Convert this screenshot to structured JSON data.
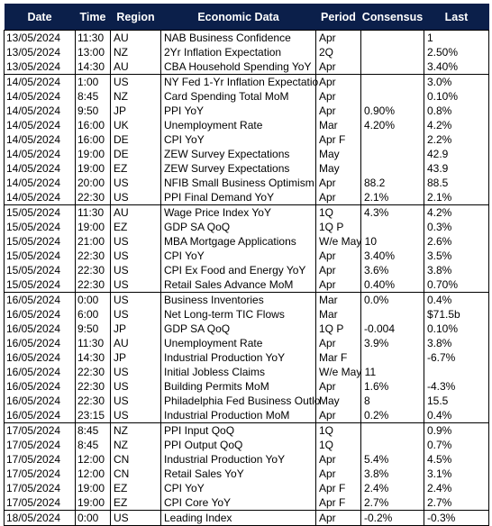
{
  "headers": [
    "Date",
    "Time",
    "Region",
    "Economic Data",
    "Period",
    "Consensus",
    "Last"
  ],
  "groups": [
    [
      [
        "13/05/2024",
        "11:30",
        "AU",
        "NAB Business Confidence",
        "Apr",
        "",
        "1"
      ],
      [
        "13/05/2024",
        "13:00",
        "NZ",
        "2Yr Inflation Expectation",
        "2Q",
        "",
        "2.50%"
      ],
      [
        "13/05/2024",
        "14:30",
        "AU",
        "CBA Household Spending YoY",
        "Apr",
        "",
        "3.40%"
      ]
    ],
    [
      [
        "14/05/2024",
        "1:00",
        "US",
        "NY Fed 1-Yr Inflation Expectatio",
        "Apr",
        "",
        "3.0%"
      ],
      [
        "14/05/2024",
        "8:45",
        "NZ",
        "Card Spending Total MoM",
        "Apr",
        "",
        "0.10%"
      ],
      [
        "14/05/2024",
        "9:50",
        "JP",
        "PPI YoY",
        "Apr",
        "0.90%",
        "0.8%"
      ],
      [
        "14/05/2024",
        "16:00",
        "UK",
        "Unemployment Rate",
        "Mar",
        "4.20%",
        "4.2%"
      ],
      [
        "14/05/2024",
        "16:00",
        "DE",
        "CPI YoY",
        "Apr F",
        "",
        "2.2%"
      ],
      [
        "14/05/2024",
        "19:00",
        "DE",
        "ZEW Survey Expectations",
        "May",
        "",
        "42.9"
      ],
      [
        "14/05/2024",
        "19:00",
        "EZ",
        "ZEW Survey Expectations",
        "May",
        "",
        "43.9"
      ],
      [
        "14/05/2024",
        "20:00",
        "US",
        "NFIB Small Business Optimism",
        "Apr",
        "88.2",
        "88.5"
      ],
      [
        "14/05/2024",
        "22:30",
        "US",
        "PPI Final Demand YoY",
        "Apr",
        "2.1%",
        "2.1%"
      ]
    ],
    [
      [
        "15/05/2024",
        "11:30",
        "AU",
        "Wage Price Index YoY",
        "1Q",
        "4.3%",
        "4.2%"
      ],
      [
        "15/05/2024",
        "19:00",
        "EZ",
        "GDP SA QoQ",
        "1Q P",
        "",
        "0.3%"
      ],
      [
        "15/05/2024",
        "21:00",
        "US",
        "MBA Mortgage Applications",
        "W/e May 10",
        "",
        "2.6%"
      ],
      [
        "15/05/2024",
        "22:30",
        "US",
        "CPI YoY",
        "Apr",
        "3.40%",
        "3.5%"
      ],
      [
        "15/05/2024",
        "22:30",
        "US",
        "CPI Ex Food and Energy YoY",
        "Apr",
        "3.6%",
        "3.8%"
      ],
      [
        "15/05/2024",
        "22:30",
        "US",
        "Retail Sales Advance MoM",
        "Apr",
        "0.40%",
        "0.70%"
      ]
    ],
    [
      [
        "16/05/2024",
        "0:00",
        "US",
        "Business Inventories",
        "Mar",
        "0.0%",
        "0.4%"
      ],
      [
        "16/05/2024",
        "6:00",
        "US",
        "Net Long-term TIC Flows",
        "Mar",
        "",
        "$71.5b"
      ],
      [
        "16/05/2024",
        "9:50",
        "JP",
        "GDP SA QoQ",
        "1Q P",
        "-0.004",
        "0.10%"
      ],
      [
        "16/05/2024",
        "11:30",
        "AU",
        "Unemployment Rate",
        "Apr",
        "3.9%",
        "3.8%"
      ],
      [
        "16/05/2024",
        "14:30",
        "JP",
        "Industrial Production YoY",
        "Mar F",
        "",
        "-6.7%"
      ],
      [
        "16/05/2024",
        "22:30",
        "US",
        "Initial Jobless Claims",
        "W/e May 11",
        "",
        ""
      ],
      [
        "16/05/2024",
        "22:30",
        "US",
        "Building Permits MoM",
        "Apr",
        "1.6%",
        "-4.3%"
      ],
      [
        "16/05/2024",
        "22:30",
        "US",
        "Philadelphia Fed Business Outlo",
        "May",
        "8",
        "15.5"
      ],
      [
        "16/05/2024",
        "23:15",
        "US",
        "Industrial Production MoM",
        "Apr",
        "0.2%",
        "0.4%"
      ]
    ],
    [
      [
        "17/05/2024",
        "8:45",
        "NZ",
        "PPI Input QoQ",
        "1Q",
        "",
        "0.9%"
      ],
      [
        "17/05/2024",
        "8:45",
        "NZ",
        "PPI Output QoQ",
        "1Q",
        "",
        "0.7%"
      ],
      [
        "17/05/2024",
        "12:00",
        "CN",
        "Industrial Production YoY",
        "Apr",
        "5.4%",
        "4.5%"
      ],
      [
        "17/05/2024",
        "12:00",
        "CN",
        "Retail Sales YoY",
        "Apr",
        "3.8%",
        "3.1%"
      ],
      [
        "17/05/2024",
        "19:00",
        "EZ",
        "CPI YoY",
        "Apr F",
        "2.4%",
        "2.4%"
      ],
      [
        "17/05/2024",
        "19:00",
        "EZ",
        "CPI Core YoY",
        "Apr F",
        "2.7%",
        "2.7%"
      ]
    ],
    [
      [
        "18/05/2024",
        "0:00",
        "US",
        "Leading Index",
        "Apr",
        "-0.2%",
        "-0.3%"
      ]
    ]
  ]
}
